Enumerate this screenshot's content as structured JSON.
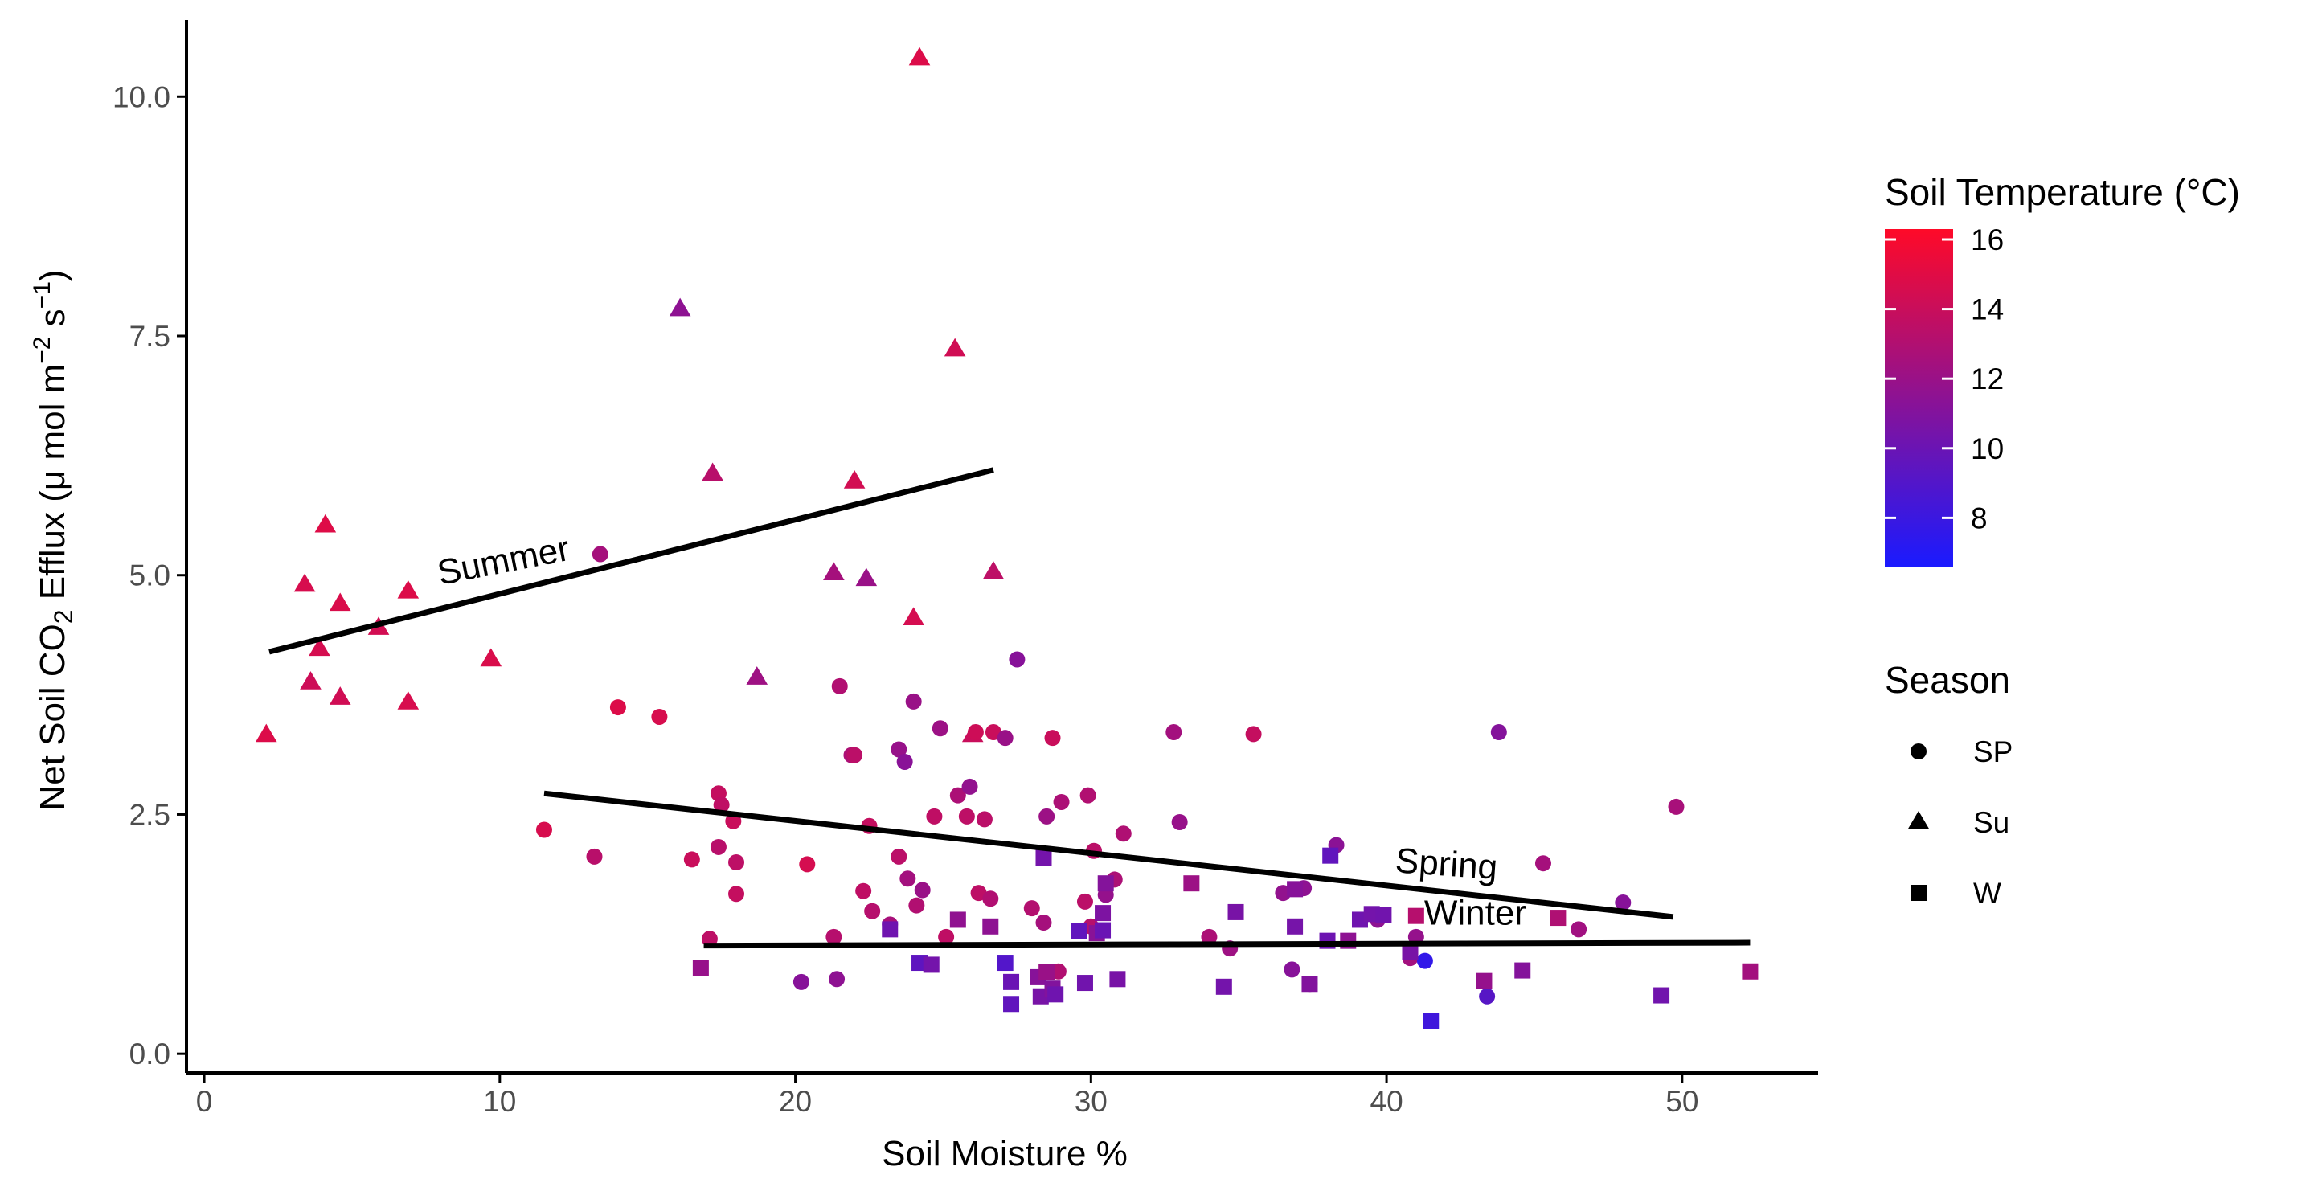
{
  "chart_data": {
    "type": "scatter",
    "xlabel": "Soil Moisture %",
    "ylabel": {
      "prefix": "Net Soil  CO",
      "sub": "2",
      "mid": " Efflux (μ mol m",
      "sup1": "−2",
      "mid2": " s",
      "sup2": "−1",
      "suffix": ")"
    },
    "xlim": [
      -0.6,
      54.6
    ],
    "ylim": [
      -0.2,
      10.8
    ],
    "xticks": [
      0,
      10,
      20,
      30,
      40,
      50
    ],
    "yticks": [
      0.0,
      2.5,
      5.0,
      7.5,
      10.0
    ],
    "yticklabels": [
      "0.0",
      "2.5",
      "5.0",
      "7.5",
      "10.0"
    ],
    "color_legend": {
      "title": "Soil Temperature (°C)",
      "min": 6.6,
      "max": 16.3,
      "low_color": "#1a1aff",
      "high_color": "#ff0a28",
      "ticks": [
        8,
        10,
        12,
        14,
        16
      ]
    },
    "shape_legend": {
      "title": "Season",
      "entries": [
        {
          "label": "SP",
          "shape": "circle"
        },
        {
          "label": "Su",
          "shape": "triangle"
        },
        {
          "label": "W",
          "shape": "square"
        }
      ]
    },
    "trend_lines": [
      {
        "name": "Summer",
        "x": [
          2.2,
          26.7
        ],
        "y": [
          4.2,
          6.1
        ],
        "label": "Summer",
        "label_at": [
          10.2,
          5.03
        ],
        "label_angle": -11
      },
      {
        "name": "Spring",
        "x": [
          11.5,
          49.7
        ],
        "y": [
          2.72,
          1.43
        ],
        "label": "Spring",
        "label_at": [
          42.0,
          1.86
        ],
        "label_angle": 4
      },
      {
        "name": "Winter",
        "x": [
          16.9,
          52.3
        ],
        "y": [
          1.13,
          1.16
        ],
        "label": "Winter",
        "label_at": [
          43.0,
          1.35
        ],
        "label_angle": 0
      }
    ],
    "series": [
      {
        "name": "Su",
        "shape": "triangle",
        "points": [
          [
            2.1,
            3.33,
            14.8
          ],
          [
            3.4,
            4.9,
            14.6
          ],
          [
            3.6,
            3.88,
            14.2
          ],
          [
            3.9,
            4.23,
            14.5
          ],
          [
            4.1,
            5.52,
            14.9
          ],
          [
            4.6,
            4.7,
            14.7
          ],
          [
            4.6,
            3.72,
            14.3
          ],
          [
            5.9,
            4.45,
            14.4
          ],
          [
            6.9,
            4.83,
            14.8
          ],
          [
            6.9,
            3.67,
            14.6
          ],
          [
            9.7,
            4.12,
            14.7
          ],
          [
            16.1,
            7.78,
            11.5
          ],
          [
            17.2,
            6.06,
            13.3
          ],
          [
            18.7,
            3.93,
            12.2
          ],
          [
            21.3,
            5.02,
            12.5
          ],
          [
            22.0,
            5.98,
            14.4
          ],
          [
            22.4,
            4.96,
            12.0
          ],
          [
            24.0,
            4.55,
            14.5
          ],
          [
            24.2,
            10.4,
            14.8
          ],
          [
            25.4,
            7.36,
            14.3
          ],
          [
            26.0,
            3.33,
            14.0
          ],
          [
            26.7,
            5.03,
            13.5
          ]
        ]
      },
      {
        "name": "SP",
        "shape": "circle",
        "points": [
          [
            11.5,
            2.34,
            14.6
          ],
          [
            13.2,
            2.06,
            13.3
          ],
          [
            13.4,
            5.22,
            12.5
          ],
          [
            14.0,
            3.62,
            14.8
          ],
          [
            15.4,
            3.52,
            14.6
          ],
          [
            16.5,
            2.03,
            14.0
          ],
          [
            17.1,
            1.2,
            13.5
          ],
          [
            17.4,
            2.72,
            13.8
          ],
          [
            17.5,
            2.6,
            13.6
          ],
          [
            17.4,
            2.16,
            13.3
          ],
          [
            17.9,
            2.43,
            14.0
          ],
          [
            18.0,
            2.0,
            13.5
          ],
          [
            18.0,
            1.67,
            13.8
          ],
          [
            20.2,
            0.75,
            11.2
          ],
          [
            20.4,
            1.98,
            14.5
          ],
          [
            21.3,
            1.22,
            13.2
          ],
          [
            21.4,
            0.78,
            11.5
          ],
          [
            21.5,
            3.84,
            13.0
          ],
          [
            21.9,
            3.12,
            12.8
          ],
          [
            22.0,
            3.12,
            13.4
          ],
          [
            22.3,
            1.7,
            13.6
          ],
          [
            22.5,
            2.38,
            13.8
          ],
          [
            22.6,
            1.49,
            13.2
          ],
          [
            23.2,
            1.35,
            12.6
          ],
          [
            23.5,
            2.06,
            13.4
          ],
          [
            23.5,
            3.18,
            11.9
          ],
          [
            23.7,
            3.05,
            11.3
          ],
          [
            23.8,
            1.83,
            12.4
          ],
          [
            24.0,
            3.68,
            12.0
          ],
          [
            24.1,
            1.55,
            13.0
          ],
          [
            24.3,
            1.71,
            12.0
          ],
          [
            24.7,
            2.48,
            13.6
          ],
          [
            24.9,
            3.4,
            12.1
          ],
          [
            25.1,
            1.22,
            13.6
          ],
          [
            25.5,
            2.7,
            12.8
          ],
          [
            25.8,
            2.48,
            13.5
          ],
          [
            25.9,
            2.79,
            11.7
          ],
          [
            26.1,
            3.36,
            14.2
          ],
          [
            26.2,
            1.68,
            13.5
          ],
          [
            26.4,
            2.45,
            13.4
          ],
          [
            26.6,
            1.62,
            13.0
          ],
          [
            26.7,
            3.36,
            14.0
          ],
          [
            27.1,
            3.3,
            12.0
          ],
          [
            27.5,
            4.12,
            11.2
          ],
          [
            28.0,
            1.52,
            13.1
          ],
          [
            28.4,
            1.37,
            12.5
          ],
          [
            28.5,
            2.48,
            12.1
          ],
          [
            28.7,
            3.3,
            14.0
          ],
          [
            28.9,
            0.86,
            13.0
          ],
          [
            29.0,
            2.63,
            12.8
          ],
          [
            29.8,
            1.59,
            13.4
          ],
          [
            29.9,
            2.7,
            13.0
          ],
          [
            30.0,
            1.33,
            13.2
          ],
          [
            30.1,
            2.12,
            13.4
          ],
          [
            30.5,
            1.66,
            11.8
          ],
          [
            30.8,
            1.82,
            12.8
          ],
          [
            31.1,
            2.3,
            12.9
          ],
          [
            32.8,
            3.36,
            12.4
          ],
          [
            33.0,
            2.42,
            11.9
          ],
          [
            34.0,
            1.22,
            12.8
          ],
          [
            34.7,
            1.1,
            12.2
          ],
          [
            35.5,
            3.34,
            13.8
          ],
          [
            36.5,
            1.68,
            11.7
          ],
          [
            36.8,
            0.88,
            11.2
          ],
          [
            37.2,
            1.73,
            11.5
          ],
          [
            37.4,
            0.73,
            11.6
          ],
          [
            38.3,
            2.18,
            11.4
          ],
          [
            39.7,
            1.4,
            11.5
          ],
          [
            40.8,
            1.0,
            12.4
          ],
          [
            41.0,
            1.22,
            11.8
          ],
          [
            41.3,
            0.97,
            7.6
          ],
          [
            43.4,
            0.6,
            9.2
          ],
          [
            43.8,
            3.36,
            11.1
          ],
          [
            45.3,
            1.99,
            12.5
          ],
          [
            46.5,
            1.3,
            12.3
          ],
          [
            48.0,
            1.58,
            11.2
          ],
          [
            49.8,
            2.58,
            12.6
          ]
        ]
      },
      {
        "name": "W",
        "shape": "square",
        "points": [
          [
            16.8,
            0.9,
            11.9
          ],
          [
            23.2,
            1.3,
            10.2
          ],
          [
            24.2,
            0.95,
            9.5
          ],
          [
            24.6,
            0.93,
            10.4
          ],
          [
            25.5,
            1.4,
            11.6
          ],
          [
            26.6,
            1.33,
            11.5
          ],
          [
            27.1,
            0.95,
            9.0
          ],
          [
            27.3,
            0.75,
            10.0
          ],
          [
            27.3,
            0.52,
            9.6
          ],
          [
            28.2,
            0.8,
            11.2
          ],
          [
            28.3,
            0.6,
            10.6
          ],
          [
            28.4,
            2.05,
            10.4
          ],
          [
            28.5,
            0.85,
            12.0
          ],
          [
            28.7,
            0.68,
            11.0
          ],
          [
            28.8,
            0.62,
            10.2
          ],
          [
            29.6,
            1.28,
            9.6
          ],
          [
            29.8,
            0.74,
            10.3
          ],
          [
            30.2,
            1.26,
            11.3
          ],
          [
            30.4,
            1.47,
            10.8
          ],
          [
            30.4,
            1.29,
            10.0
          ],
          [
            30.5,
            1.78,
            11.1
          ],
          [
            30.9,
            0.78,
            10.6
          ],
          [
            33.4,
            1.78,
            12.1
          ],
          [
            34.5,
            0.7,
            10.4
          ],
          [
            34.9,
            1.48,
            10.6
          ],
          [
            36.9,
            1.72,
            11.2
          ],
          [
            36.9,
            1.33,
            10.5
          ],
          [
            37.4,
            0.73,
            11.0
          ],
          [
            38.0,
            1.18,
            10.1
          ],
          [
            38.1,
            2.07,
            9.6
          ],
          [
            38.7,
            1.18,
            11.5
          ],
          [
            39.1,
            1.4,
            10.2
          ],
          [
            39.5,
            1.46,
            10.4
          ],
          [
            39.9,
            1.45,
            10.3
          ],
          [
            40.8,
            1.06,
            10.6
          ],
          [
            41.0,
            1.44,
            13.2
          ],
          [
            41.5,
            0.34,
            8.2
          ],
          [
            43.3,
            0.76,
            11.8
          ],
          [
            44.6,
            0.87,
            11.1
          ],
          [
            45.8,
            1.42,
            12.9
          ],
          [
            49.3,
            0.61,
            10.3
          ],
          [
            52.3,
            0.86,
            12.4
          ]
        ]
      }
    ]
  }
}
